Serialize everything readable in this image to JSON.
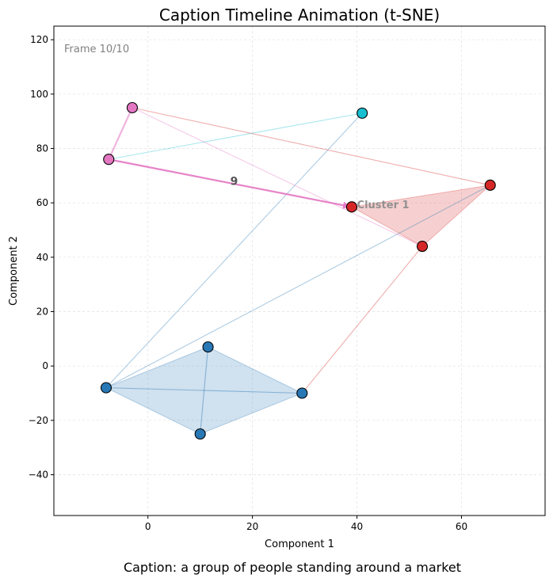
{
  "chart_data": {
    "type": "scatter",
    "title": "Caption Timeline Animation (t-SNE)",
    "xlabel": "Component 1",
    "ylabel": "Component 2",
    "xlim": [
      -18,
      76
    ],
    "ylim": [
      -55,
      125
    ],
    "xticks": [
      0,
      20,
      40,
      60
    ],
    "yticks": [
      -40,
      -20,
      0,
      20,
      40,
      60,
      80,
      100,
      120
    ],
    "grid": true,
    "frame_label": "Frame 10/10",
    "caption": "Caption: a group of people standing around a market",
    "colors": {
      "blue": "#2878b5",
      "red": "#d62728",
      "pink": "#e377c2",
      "cyan": "#17becf"
    },
    "points": [
      {
        "x": 11.5,
        "y": 7,
        "color": "blue"
      },
      {
        "x": -8,
        "y": -8,
        "color": "blue"
      },
      {
        "x": 29.5,
        "y": -10,
        "color": "blue"
      },
      {
        "x": 10,
        "y": -25,
        "color": "blue"
      },
      {
        "x": 65.5,
        "y": 66.5,
        "color": "red"
      },
      {
        "x": 52.5,
        "y": 44,
        "color": "red"
      },
      {
        "x": 39,
        "y": 58.5,
        "color": "red"
      },
      {
        "x": -3,
        "y": 95,
        "color": "pink"
      },
      {
        "x": -7.5,
        "y": 76,
        "color": "pink"
      },
      {
        "x": 41,
        "y": 93,
        "color": "cyan"
      }
    ],
    "hulls": [
      {
        "color": "blue",
        "vertices": [
          [
            11.5,
            7
          ],
          [
            -8,
            -8
          ],
          [
            10,
            -25
          ],
          [
            29.5,
            -10
          ]
        ]
      },
      {
        "color": "red",
        "vertices": [
          [
            39,
            58.5
          ],
          [
            65.5,
            66.5
          ],
          [
            52.5,
            44
          ]
        ]
      }
    ],
    "inner_edges": [
      {
        "color": "blue",
        "from": [
          -8,
          -8
        ],
        "to": [
          29.5,
          -10
        ]
      },
      {
        "color": "blue",
        "from": [
          11.5,
          7
        ],
        "to": [
          10,
          -25
        ]
      }
    ],
    "trajectory": [
      {
        "from": [
          41,
          93
        ],
        "to": [
          -8,
          -8
        ],
        "color": "blue"
      },
      {
        "from": [
          -8,
          -8
        ],
        "to": [
          65.5,
          66.5
        ],
        "color": "blue"
      },
      {
        "from": [
          65.5,
          66.5
        ],
        "to": [
          -3,
          95
        ],
        "color": "red"
      },
      {
        "from": [
          -3,
          95
        ],
        "to": [
          52.5,
          44
        ],
        "color": "pink"
      },
      {
        "from": [
          52.5,
          44
        ],
        "to": [
          29.5,
          -10
        ],
        "color": "red"
      },
      {
        "from": [
          -7.5,
          76
        ],
        "to": [
          41,
          93
        ],
        "color": "cyan"
      },
      {
        "from": [
          -3,
          95
        ],
        "to": [
          -7.5,
          76
        ],
        "color": "pink",
        "emphasis": "medium"
      }
    ],
    "current_step": {
      "from": [
        -7.5,
        76
      ],
      "to": [
        39,
        58.5
      ],
      "color": "pink",
      "label": "9",
      "label_at": [
        16.5,
        68
      ]
    },
    "annotations": [
      {
        "text": "Cluster 1",
        "x": 40,
        "y": 59.5
      }
    ]
  }
}
